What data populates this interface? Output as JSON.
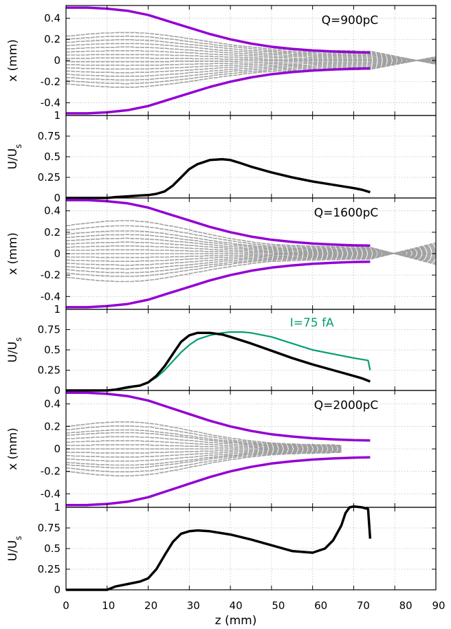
{
  "figure": {
    "xaxis": {
      "label": "z (mm)",
      "range": [
        0,
        90
      ],
      "ticks": [
        0,
        10,
        20,
        30,
        40,
        50,
        60,
        70,
        80,
        90
      ],
      "tick_labels": [
        "0",
        "10",
        "20",
        "30",
        "40",
        "50",
        "60",
        "70",
        "80",
        "90"
      ]
    },
    "colors": {
      "envelope": "#9400d3",
      "particles": "#a0a0a0",
      "voltage": "#000000",
      "current_model": "#009e73",
      "grid": "#bfbfbf"
    }
  },
  "chart_data": [
    {
      "type": "line",
      "panel": "beam-envelope-900pC",
      "annotation": "Q=900pC",
      "ylabel": "x (mm)",
      "xlim": [
        0,
        90
      ],
      "ylim": [
        -0.52,
        0.52
      ],
      "yticks": [
        0.4,
        0.2,
        0,
        -0.2,
        -0.4
      ],
      "ytick_labels": [
        "0.4",
        "0.2",
        "0",
        "-0.2",
        "-0.4"
      ],
      "grid": true,
      "envelope": {
        "x": [
          0,
          5,
          10,
          15,
          20,
          25,
          30,
          35,
          40,
          45,
          50,
          55,
          60,
          65,
          70,
          74
        ],
        "upper": [
          0.5,
          0.5,
          0.49,
          0.47,
          0.43,
          0.37,
          0.31,
          0.25,
          0.2,
          0.16,
          0.13,
          0.11,
          0.095,
          0.085,
          0.078,
          0.075
        ]
      },
      "particles": {
        "z_start": 0,
        "z_end": 74,
        "tail_end": 90,
        "tail_spread": 0.035,
        "start_offsets": [
          0.23,
          0.2,
          0.17,
          0.14,
          0.11,
          0.08,
          0.05,
          0.02,
          -0.01,
          -0.04,
          -0.07,
          -0.1,
          -0.13,
          -0.16,
          -0.19,
          -0.22
        ],
        "focus_gain": 0.28
      }
    },
    {
      "type": "line",
      "panel": "voltage-900pC",
      "ylabel": "U/U_s",
      "xlim": [
        0,
        90
      ],
      "ylim": [
        0,
        1
      ],
      "yticks": [
        0,
        0.25,
        0.5,
        0.75,
        1
      ],
      "ytick_labels": [
        "0",
        "0.25",
        "0.5",
        "0.75",
        "1"
      ],
      "grid": true,
      "series": [
        {
          "x": [
            0,
            5,
            10,
            12,
            15,
            18,
            20,
            22,
            24,
            26,
            28,
            30,
            32,
            35,
            38,
            40,
            42,
            45,
            50,
            55,
            60,
            65,
            70,
            72,
            74
          ],
          "y": [
            0,
            0,
            0,
            0.01,
            0.02,
            0.03,
            0.035,
            0.05,
            0.08,
            0.15,
            0.25,
            0.35,
            0.41,
            0.46,
            0.47,
            0.46,
            0.43,
            0.38,
            0.31,
            0.25,
            0.2,
            0.16,
            0.12,
            0.1,
            0.07
          ]
        }
      ]
    },
    {
      "type": "line",
      "panel": "beam-envelope-1600pC",
      "annotation": "Q=1600pC",
      "ylabel": "x (mm)",
      "xlim": [
        0,
        90
      ],
      "ylim": [
        -0.52,
        0.52
      ],
      "yticks": [
        0.4,
        0.2,
        0,
        -0.2,
        -0.4
      ],
      "ytick_labels": [
        "0.4",
        "0.2",
        "0",
        "-0.2",
        "-0.4"
      ],
      "grid": true,
      "envelope": {
        "x": [
          0,
          5,
          10,
          15,
          20,
          25,
          30,
          35,
          40,
          45,
          50,
          55,
          60,
          65,
          70,
          74
        ],
        "upper": [
          0.5,
          0.5,
          0.49,
          0.47,
          0.43,
          0.37,
          0.31,
          0.25,
          0.2,
          0.16,
          0.13,
          0.11,
          0.095,
          0.085,
          0.078,
          0.075
        ]
      },
      "particles": {
        "z_start": 0,
        "z_end": 74,
        "tail_end": 90,
        "tail_spread": 0.1,
        "start_offsets": [
          0.26,
          0.22,
          0.18,
          0.15,
          0.12,
          0.09,
          0.06,
          0.03,
          0.0,
          -0.03,
          -0.06,
          -0.09,
          -0.12,
          -0.15,
          -0.18,
          -0.22
        ],
        "focus_gain": 0.1
      }
    },
    {
      "type": "line",
      "panel": "voltage-1600pC",
      "ylabel": "U/U_s",
      "xlim": [
        0,
        90
      ],
      "ylim": [
        0,
        1
      ],
      "yticks": [
        0,
        0.25,
        0.5,
        0.75,
        1
      ],
      "ytick_labels": [
        "0",
        "0.25",
        "0.5",
        "0.75",
        "1"
      ],
      "grid": true,
      "series": [
        {
          "x": [
            0,
            5,
            10,
            12,
            15,
            18,
            20,
            22,
            24,
            26,
            28,
            30,
            32,
            35,
            38,
            40,
            45,
            50,
            55,
            60,
            65,
            70,
            72,
            74
          ],
          "y": [
            0,
            0,
            0,
            0.01,
            0.04,
            0.06,
            0.1,
            0.18,
            0.3,
            0.45,
            0.6,
            0.68,
            0.71,
            0.71,
            0.69,
            0.66,
            0.58,
            0.49,
            0.4,
            0.32,
            0.25,
            0.18,
            0.15,
            0.11
          ]
        },
        {
          "name": "I=75 fA",
          "x": [
            0,
            5,
            10,
            12,
            15,
            18,
            20,
            22,
            24,
            26,
            28,
            30,
            32,
            35,
            38,
            40,
            43,
            45,
            50,
            55,
            60,
            65,
            70,
            73.5,
            74
          ],
          "y": [
            0,
            0,
            0,
            0.01,
            0.03,
            0.06,
            0.1,
            0.16,
            0.25,
            0.36,
            0.47,
            0.56,
            0.63,
            0.68,
            0.71,
            0.72,
            0.72,
            0.71,
            0.66,
            0.58,
            0.5,
            0.45,
            0.4,
            0.37,
            0.25
          ]
        }
      ]
    },
    {
      "type": "line",
      "panel": "beam-envelope-2000pC",
      "annotation": "Q=2000pC",
      "ylabel": "x (mm)",
      "xlim": [
        0,
        90
      ],
      "ylim": [
        -0.52,
        0.52
      ],
      "yticks": [
        0.4,
        0.2,
        0,
        -0.2,
        -0.4
      ],
      "ytick_labels": [
        "0.4",
        "0.2",
        "0",
        "-0.2",
        "-0.4"
      ],
      "grid": true,
      "envelope": {
        "x": [
          0,
          5,
          10,
          15,
          20,
          25,
          30,
          35,
          40,
          45,
          50,
          55,
          60,
          65,
          70,
          74
        ],
        "upper": [
          0.5,
          0.5,
          0.49,
          0.47,
          0.43,
          0.37,
          0.31,
          0.25,
          0.2,
          0.16,
          0.13,
          0.11,
          0.095,
          0.085,
          0.078,
          0.075
        ]
      },
      "particles": {
        "z_start": 0,
        "z_end": 67,
        "tail_end": 67,
        "tail_spread": 0.08,
        "start_offsets": [
          0.2,
          0.17,
          0.14,
          0.12,
          0.09,
          0.06,
          0.03,
          0.0,
          -0.03,
          -0.06,
          -0.09,
          -0.12,
          -0.14,
          -0.17,
          -0.2
        ],
        "focus_gain": 0.0
      }
    },
    {
      "type": "line",
      "panel": "voltage-2000pC",
      "ylabel": "U/U_s",
      "xlim": [
        0,
        90
      ],
      "ylim": [
        0,
        1
      ],
      "yticks": [
        0,
        0.25,
        0.5,
        0.75,
        1
      ],
      "ytick_labels": [
        "0",
        "0.25",
        "0.5",
        "0.75",
        "1"
      ],
      "grid": true,
      "series": [
        {
          "x": [
            0,
            5,
            10,
            12,
            15,
            18,
            20,
            22,
            24,
            26,
            28,
            30,
            32,
            35,
            40,
            45,
            50,
            55,
            60,
            63,
            65,
            67,
            68,
            69,
            70,
            72,
            73.5,
            74
          ],
          "y": [
            0,
            0,
            0,
            0.04,
            0.07,
            0.1,
            0.14,
            0.25,
            0.42,
            0.58,
            0.68,
            0.71,
            0.72,
            0.71,
            0.67,
            0.61,
            0.54,
            0.47,
            0.45,
            0.5,
            0.6,
            0.78,
            0.93,
            1.0,
            1.01,
            1.0,
            0.98,
            0.62
          ]
        }
      ]
    }
  ]
}
